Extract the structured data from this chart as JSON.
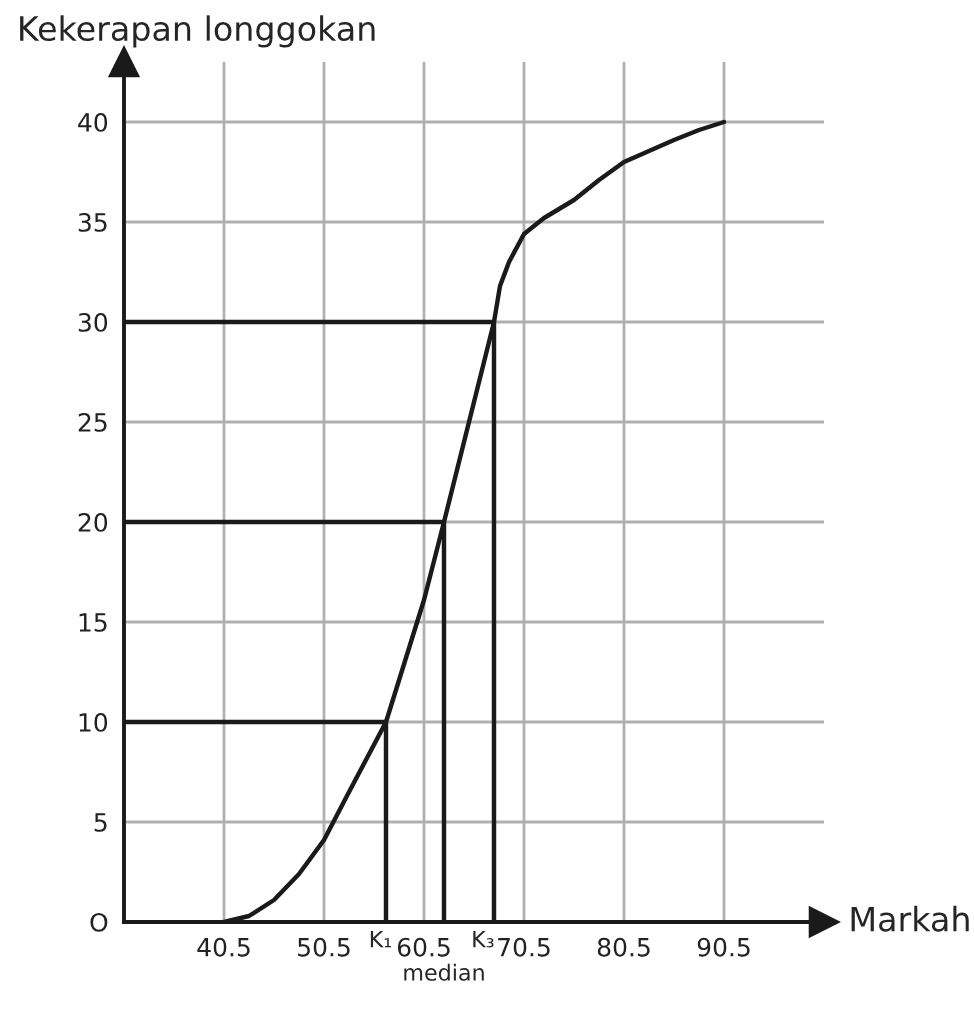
{
  "chart_data": {
    "type": "line",
    "xlabel": "Markah",
    "ylabel": "Kekerapan longgokan",
    "xlim": [
      30.5,
      100.5
    ],
    "ylim": [
      0,
      43
    ],
    "xticks": [
      40.5,
      50.5,
      60.5,
      70.5,
      80.5,
      90.5
    ],
    "yticks": [
      {
        "value": 0,
        "label": "O"
      },
      5,
      10,
      15,
      20,
      25,
      30,
      35,
      40
    ],
    "grid": true,
    "legend": false,
    "marker": "none",
    "line_style": "solid",
    "series": [
      {
        "color": "#1a1a1a",
        "x": [
          40.5,
          43,
          45.5,
          48,
          50.5,
          53,
          56.7,
          60.5,
          62.5,
          67.5,
          68.1,
          69,
          70.5,
          72.5,
          75.5,
          78,
          80.5,
          85.5,
          88,
          90.5
        ],
        "values": [
          0,
          0.3,
          1.1,
          2.4,
          4.1,
          6.5,
          10,
          16.1,
          20,
          30,
          31.8,
          33,
          34.4,
          35.2,
          36.1,
          37.1,
          38,
          39.1,
          39.6,
          40
        ]
      },
      {
        "color": "#1a1a1a",
        "x": [
          30.5,
          56.7,
          56.7
        ],
        "values": [
          10,
          10,
          0
        ]
      },
      {
        "color": "#1a1a1a",
        "x": [
          30.5,
          62.5,
          62.5
        ],
        "values": [
          20,
          20,
          0
        ]
      },
      {
        "color": "#1a1a1a",
        "x": [
          30.5,
          67.5,
          67.5
        ],
        "values": [
          30,
          30,
          0
        ]
      }
    ],
    "annotations": [
      {
        "text": "K₁",
        "x": 56.7,
        "y": 0
      },
      {
        "text": "K₃",
        "x": 67.5,
        "y": 0
      },
      {
        "text": "median",
        "x": 62.5,
        "y": 0
      }
    ]
  }
}
